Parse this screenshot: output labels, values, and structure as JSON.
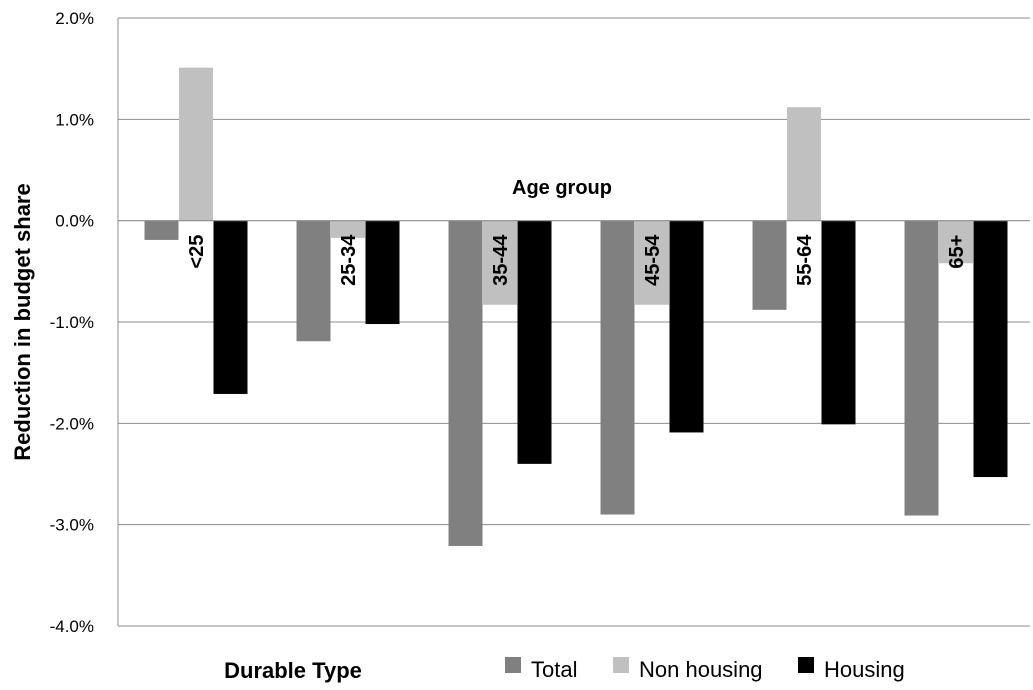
{
  "chart_data": {
    "type": "bar",
    "title": "",
    "xlabel": "Durable Type",
    "ylabel": "Reduction in budget share",
    "inner_title": "Age group",
    "categories": [
      "<25",
      "25-34",
      "35-44",
      "45-54",
      "55-64",
      "65+"
    ],
    "series": [
      {
        "name": "Total",
        "color": "#808080",
        "values": [
          -0.19,
          -1.19,
          -3.21,
          -2.9,
          -0.88,
          -2.91
        ]
      },
      {
        "name": "Non housing",
        "color": "#c0c0c0",
        "values": [
          1.51,
          -0.17,
          -0.83,
          -0.83,
          1.12,
          -0.42
        ]
      },
      {
        "name": "Housing",
        "color": "#000000",
        "values": [
          -1.71,
          -1.02,
          -2.4,
          -2.09,
          -2.01,
          -2.53
        ]
      }
    ],
    "ylim": [
      -4,
      2
    ],
    "yticks": [
      2,
      1,
      0,
      -1,
      -2,
      -3,
      -4
    ],
    "ytick_labels": [
      "2.0%",
      "1.0%",
      "0.0%",
      "-1.0%",
      "-2.0%",
      "-3.0%",
      "-4.0%"
    ],
    "grid": true,
    "legend_position": "bottom"
  }
}
